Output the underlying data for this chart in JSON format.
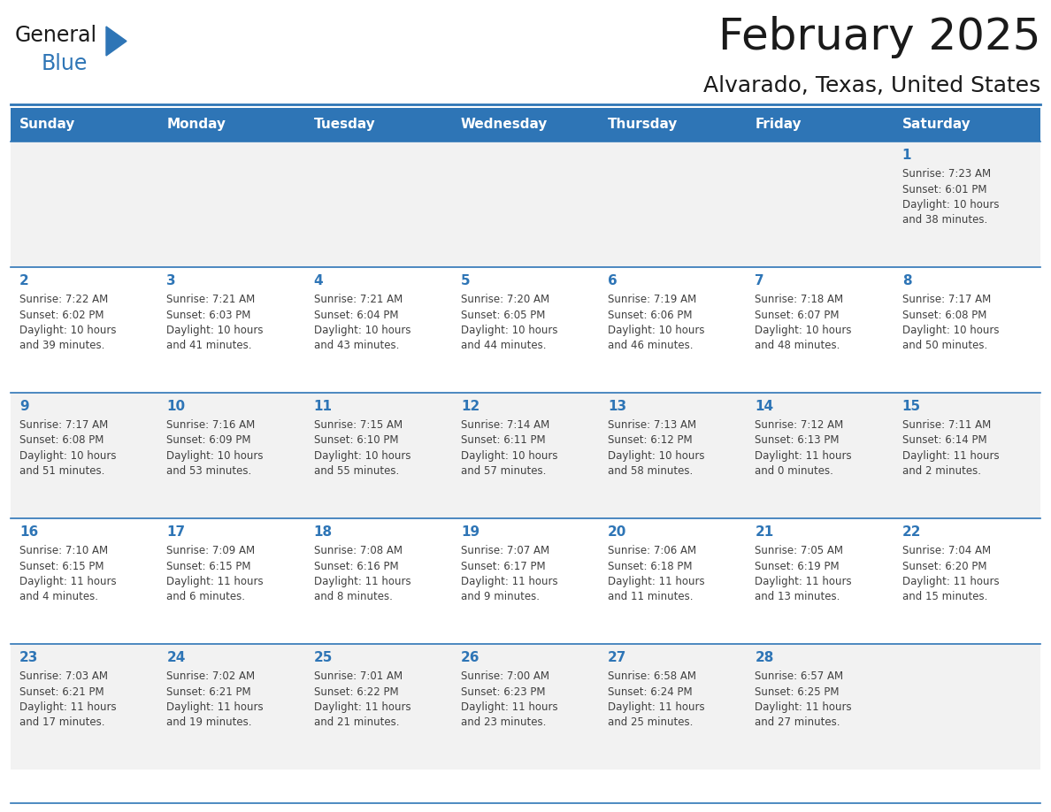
{
  "title": "February 2025",
  "subtitle": "Alvarado, Texas, United States",
  "header_bg": "#2E75B6",
  "header_text_color": "#FFFFFF",
  "cell_bg_light": "#F2F2F2",
  "cell_bg_white": "#FFFFFF",
  "border_color": "#2E75B6",
  "day_number_color": "#2E75B6",
  "cell_text_color": "#404040",
  "days_of_week": [
    "Sunday",
    "Monday",
    "Tuesday",
    "Wednesday",
    "Thursday",
    "Friday",
    "Saturday"
  ],
  "weeks": [
    [
      {
        "day": "",
        "info": ""
      },
      {
        "day": "",
        "info": ""
      },
      {
        "day": "",
        "info": ""
      },
      {
        "day": "",
        "info": ""
      },
      {
        "day": "",
        "info": ""
      },
      {
        "day": "",
        "info": ""
      },
      {
        "day": "1",
        "info": "Sunrise: 7:23 AM\nSunset: 6:01 PM\nDaylight: 10 hours\nand 38 minutes."
      }
    ],
    [
      {
        "day": "2",
        "info": "Sunrise: 7:22 AM\nSunset: 6:02 PM\nDaylight: 10 hours\nand 39 minutes."
      },
      {
        "day": "3",
        "info": "Sunrise: 7:21 AM\nSunset: 6:03 PM\nDaylight: 10 hours\nand 41 minutes."
      },
      {
        "day": "4",
        "info": "Sunrise: 7:21 AM\nSunset: 6:04 PM\nDaylight: 10 hours\nand 43 minutes."
      },
      {
        "day": "5",
        "info": "Sunrise: 7:20 AM\nSunset: 6:05 PM\nDaylight: 10 hours\nand 44 minutes."
      },
      {
        "day": "6",
        "info": "Sunrise: 7:19 AM\nSunset: 6:06 PM\nDaylight: 10 hours\nand 46 minutes."
      },
      {
        "day": "7",
        "info": "Sunrise: 7:18 AM\nSunset: 6:07 PM\nDaylight: 10 hours\nand 48 minutes."
      },
      {
        "day": "8",
        "info": "Sunrise: 7:17 AM\nSunset: 6:08 PM\nDaylight: 10 hours\nand 50 minutes."
      }
    ],
    [
      {
        "day": "9",
        "info": "Sunrise: 7:17 AM\nSunset: 6:08 PM\nDaylight: 10 hours\nand 51 minutes."
      },
      {
        "day": "10",
        "info": "Sunrise: 7:16 AM\nSunset: 6:09 PM\nDaylight: 10 hours\nand 53 minutes."
      },
      {
        "day": "11",
        "info": "Sunrise: 7:15 AM\nSunset: 6:10 PM\nDaylight: 10 hours\nand 55 minutes."
      },
      {
        "day": "12",
        "info": "Sunrise: 7:14 AM\nSunset: 6:11 PM\nDaylight: 10 hours\nand 57 minutes."
      },
      {
        "day": "13",
        "info": "Sunrise: 7:13 AM\nSunset: 6:12 PM\nDaylight: 10 hours\nand 58 minutes."
      },
      {
        "day": "14",
        "info": "Sunrise: 7:12 AM\nSunset: 6:13 PM\nDaylight: 11 hours\nand 0 minutes."
      },
      {
        "day": "15",
        "info": "Sunrise: 7:11 AM\nSunset: 6:14 PM\nDaylight: 11 hours\nand 2 minutes."
      }
    ],
    [
      {
        "day": "16",
        "info": "Sunrise: 7:10 AM\nSunset: 6:15 PM\nDaylight: 11 hours\nand 4 minutes."
      },
      {
        "day": "17",
        "info": "Sunrise: 7:09 AM\nSunset: 6:15 PM\nDaylight: 11 hours\nand 6 minutes."
      },
      {
        "day": "18",
        "info": "Sunrise: 7:08 AM\nSunset: 6:16 PM\nDaylight: 11 hours\nand 8 minutes."
      },
      {
        "day": "19",
        "info": "Sunrise: 7:07 AM\nSunset: 6:17 PM\nDaylight: 11 hours\nand 9 minutes."
      },
      {
        "day": "20",
        "info": "Sunrise: 7:06 AM\nSunset: 6:18 PM\nDaylight: 11 hours\nand 11 minutes."
      },
      {
        "day": "21",
        "info": "Sunrise: 7:05 AM\nSunset: 6:19 PM\nDaylight: 11 hours\nand 13 minutes."
      },
      {
        "day": "22",
        "info": "Sunrise: 7:04 AM\nSunset: 6:20 PM\nDaylight: 11 hours\nand 15 minutes."
      }
    ],
    [
      {
        "day": "23",
        "info": "Sunrise: 7:03 AM\nSunset: 6:21 PM\nDaylight: 11 hours\nand 17 minutes."
      },
      {
        "day": "24",
        "info": "Sunrise: 7:02 AM\nSunset: 6:21 PM\nDaylight: 11 hours\nand 19 minutes."
      },
      {
        "day": "25",
        "info": "Sunrise: 7:01 AM\nSunset: 6:22 PM\nDaylight: 11 hours\nand 21 minutes."
      },
      {
        "day": "26",
        "info": "Sunrise: 7:00 AM\nSunset: 6:23 PM\nDaylight: 11 hours\nand 23 minutes."
      },
      {
        "day": "27",
        "info": "Sunrise: 6:58 AM\nSunset: 6:24 PM\nDaylight: 11 hours\nand 25 minutes."
      },
      {
        "day": "28",
        "info": "Sunrise: 6:57 AM\nSunset: 6:25 PM\nDaylight: 11 hours\nand 27 minutes."
      },
      {
        "day": "",
        "info": ""
      }
    ]
  ],
  "logo_text_general": "General",
  "logo_text_blue": "Blue",
  "logo_color_general": "#1a1a1a",
  "logo_color_blue": "#2E75B6",
  "logo_triangle_color": "#2E75B6",
  "title_fontsize": 36,
  "subtitle_fontsize": 18,
  "header_fontsize": 11,
  "day_num_fontsize": 11,
  "cell_text_fontsize": 8.5
}
